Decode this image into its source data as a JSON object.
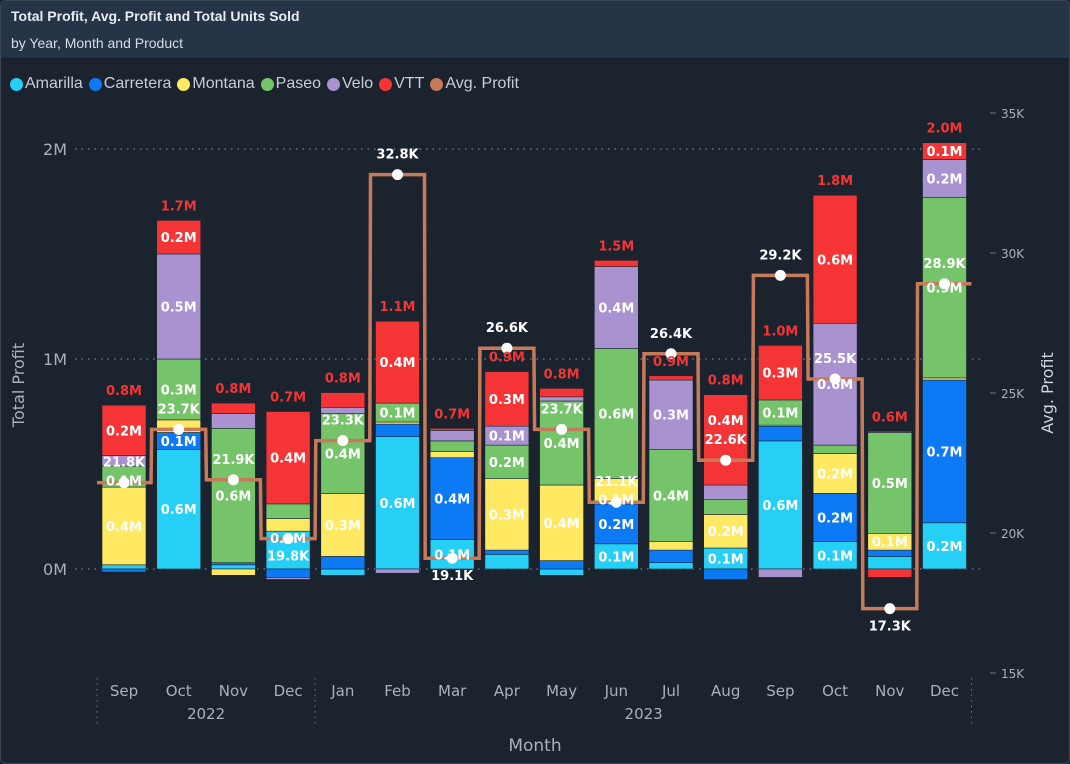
{
  "header": {
    "title": "Total Profit, Avg. Profit and Total Units Sold",
    "subtitle": "by Year, Month and Product"
  },
  "colors": {
    "background": "#1b232e",
    "Amarilla": "#26cff5",
    "Carretera": "#0d7af5",
    "Montana": "#ffe862",
    "Paseo": "#76c46a",
    "Velo": "#a893d0",
    "VTT": "#f53535",
    "Avg. Profit": "#c67a5a",
    "total_label": "#f53535"
  },
  "chart_data": {
    "type": "bar",
    "stacked": true,
    "combo_line": "step",
    "title": "Total Profit, Avg. Profit and Total Units Sold",
    "subtitle": "by Year, Month and Product",
    "xlabel": "Month",
    "ylabel": "Total Profit",
    "y2label": "Avg. Profit",
    "ylim": [
      -0.2,
      2.1
    ],
    "yticks": [
      {
        "v": 0,
        "label": "0M"
      },
      {
        "v": 1,
        "label": "1M"
      },
      {
        "v": 2,
        "label": "2M"
      }
    ],
    "y2lim": [
      15,
      35
    ],
    "y2ticks": [
      {
        "v": 15,
        "label": "15K"
      },
      {
        "v": 20,
        "label": "20K"
      },
      {
        "v": 25,
        "label": "25K"
      },
      {
        "v": 30,
        "label": "30K"
      },
      {
        "v": 35,
        "label": "35K"
      }
    ],
    "grid": true,
    "legend_position": "top-left",
    "legend": [
      "Amarilla",
      "Carretera",
      "Montana",
      "Paseo",
      "Velo",
      "VTT",
      "Avg. Profit"
    ],
    "series_names": [
      "Amarilla",
      "Carretera",
      "Montana",
      "Paseo",
      "Velo",
      "VTT"
    ],
    "units": "M",
    "years": [
      {
        "label": "2022",
        "months": 4
      },
      {
        "label": "2023",
        "months": 12
      }
    ],
    "months": [
      {
        "label": "Sep",
        "values": [
          0.02,
          -0.015,
          0.37,
          0.1,
          0.05,
          0.24
        ],
        "labels": [
          "",
          "",
          "0.4M",
          "0.1M",
          "",
          "0.2M"
        ],
        "total": "0.8M",
        "avg": 21.8,
        "avg_label": "21.8K"
      },
      {
        "label": "Oct",
        "values": [
          0.57,
          0.08,
          0.06,
          0.29,
          0.5,
          0.16
        ],
        "labels": [
          "0.6M",
          "0.1M",
          "",
          "0.3M",
          "0.5M",
          "0.2M"
        ],
        "total": "1.7M",
        "avg": 23.7,
        "avg_label": "23.7K"
      },
      {
        "label": "Nov",
        "values": [
          0.02,
          0.01,
          -0.03,
          0.64,
          0.07,
          0.05
        ],
        "labels": [
          "",
          "",
          "",
          "0.6M",
          "",
          ""
        ],
        "total": "0.8M",
        "avg": 21.9,
        "avg_label": "21.9K"
      },
      {
        "label": "Dec",
        "values": [
          0.18,
          -0.04,
          0.06,
          0.07,
          -0.01,
          0.44
        ],
        "labels": [
          "0.2M",
          "",
          "",
          "",
          "",
          "0.4M"
        ],
        "total": "0.7M",
        "avg": 19.8,
        "avg_label": "19.8K"
      },
      {
        "label": "Jan",
        "values": [
          -0.03,
          0.06,
          0.3,
          0.38,
          0.03,
          0.07
        ],
        "labels": [
          "",
          "",
          "0.3M",
          "0.4M",
          "",
          ""
        ],
        "total": "0.8M",
        "avg": 23.3,
        "avg_label": "23.3K"
      },
      {
        "label": "Feb",
        "values": [
          0.63,
          0.06,
          0.01,
          0.09,
          -0.02,
          0.39
        ],
        "labels": [
          "0.6M",
          "",
          "",
          "0.1M",
          "",
          "0.4M"
        ],
        "total": "1.1M",
        "avg": 32.8,
        "avg_label": "32.8K"
      },
      {
        "label": "Mar",
        "values": [
          0.14,
          0.39,
          0.03,
          0.05,
          0.05,
          0.01
        ],
        "labels": [
          "0.1M",
          "0.4M",
          "",
          "",
          "",
          ""
        ],
        "total": "0.7M",
        "avg": 19.1,
        "avg_label": "19.1K"
      },
      {
        "label": "Apr",
        "values": [
          0.07,
          0.02,
          0.34,
          0.16,
          0.09,
          0.26
        ],
        "labels": [
          "",
          "",
          "0.3M",
          "0.2M",
          "0.1M",
          "0.3M"
        ],
        "total": "0.9M",
        "avg": 26.6,
        "avg_label": "26.6K"
      },
      {
        "label": "May",
        "values": [
          -0.03,
          0.04,
          0.36,
          0.4,
          0.02,
          0.04
        ],
        "labels": [
          "",
          "",
          "0.4M",
          "0.4M",
          "",
          ""
        ],
        "total": "0.8M",
        "avg": 23.7,
        "avg_label": "23.7K"
      },
      {
        "label": "Jun",
        "values": [
          0.12,
          0.19,
          0.12,
          0.62,
          0.39,
          0.03
        ],
        "labels": [
          "0.1M",
          "0.2M",
          "0.1M",
          "0.6M",
          "0.4M",
          ""
        ],
        "total": "1.5M",
        "avg": 21.1,
        "avg_label": "21.1K"
      },
      {
        "label": "Jul",
        "values": [
          0.03,
          0.06,
          0.04,
          0.44,
          0.33,
          0.02
        ],
        "labels": [
          "",
          "",
          "",
          "0.4M",
          "0.3M",
          ""
        ],
        "total": "0.9M",
        "avg": 26.4,
        "avg_label": "26.4K"
      },
      {
        "label": "Aug",
        "values": [
          0.1,
          -0.05,
          0.16,
          0.07,
          0.07,
          0.43
        ],
        "labels": [
          "0.1M",
          "",
          "0.2M",
          "",
          "",
          "0.4M"
        ],
        "total": "0.8M",
        "avg": 22.6,
        "avg_label": "22.6K"
      },
      {
        "label": "Sep",
        "values": [
          0.61,
          0.07,
          0.005,
          0.12,
          -0.04,
          0.26
        ],
        "labels": [
          "0.6M",
          "",
          "",
          "0.1M",
          "",
          "0.3M"
        ],
        "total": "1.0M",
        "avg": 29.2,
        "avg_label": "29.2K"
      },
      {
        "label": "Oct",
        "values": [
          0.13,
          0.23,
          0.19,
          0.04,
          0.58,
          0.61
        ],
        "labels": [
          "0.1M",
          "0.2M",
          "0.2M",
          "",
          "0.6M",
          "0.6M"
        ],
        "total": "1.8M",
        "avg": 25.5,
        "avg_label": "25.5K"
      },
      {
        "label": "Nov",
        "values": [
          0.06,
          0.03,
          0.08,
          0.48,
          0.005,
          -0.04
        ],
        "labels": [
          "",
          "",
          "0.1M",
          "0.5M",
          "",
          ""
        ],
        "total": "0.6M",
        "avg": 17.3,
        "avg_label": "17.3K"
      },
      {
        "label": "Dec",
        "values": [
          0.22,
          0.68,
          0.01,
          0.86,
          0.18,
          0.08
        ],
        "labels": [
          "0.2M",
          "0.7M",
          "",
          "0.9M",
          "0.2M",
          "0.1M"
        ],
        "total": "2.0M",
        "avg": 28.9,
        "avg_label": "28.9K"
      }
    ]
  }
}
